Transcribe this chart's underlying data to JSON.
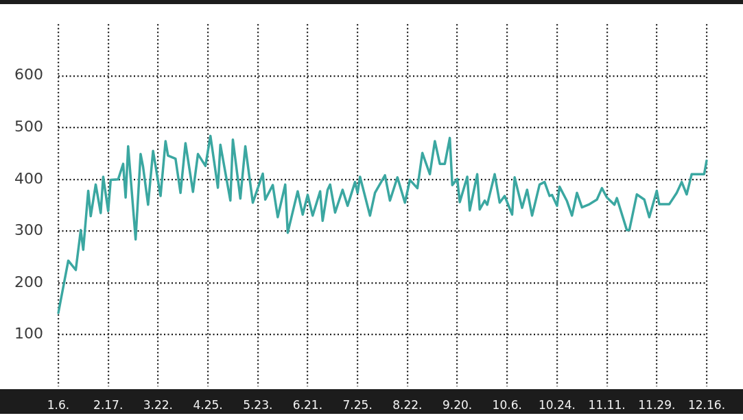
{
  "chart_data": {
    "type": "line",
    "categories": [
      "1.6.",
      null,
      null,
      null,
      null,
      null,
      null,
      null,
      null,
      null,
      null,
      null,
      null,
      null,
      null,
      null,
      null,
      null,
      null,
      null,
      "2.17.",
      null,
      null,
      null,
      null,
      null,
      null,
      null,
      null,
      null,
      null,
      null,
      null,
      null,
      null,
      null,
      null,
      null,
      null,
      null,
      "3.22.",
      null,
      null,
      null,
      null,
      null,
      null,
      null,
      null,
      null,
      null,
      null,
      null,
      null,
      null,
      null,
      null,
      null,
      null,
      null,
      "4.25.",
      null,
      null,
      null,
      null,
      null,
      null,
      null,
      null,
      null,
      null,
      null,
      null,
      null,
      null,
      null,
      null,
      null,
      null,
      null,
      "5.23.",
      null,
      null,
      null,
      null,
      null,
      null,
      null,
      null,
      null,
      null,
      null,
      null,
      null,
      null,
      null,
      null,
      null,
      null,
      null,
      "6.21.",
      null,
      null,
      null,
      null,
      null,
      null,
      null,
      null,
      null,
      null,
      null,
      null,
      null,
      null,
      null,
      null,
      null,
      null,
      null,
      "7.25.",
      null,
      null,
      null,
      null,
      null,
      null,
      null,
      null,
      null,
      null,
      null,
      null,
      null,
      null,
      null,
      null,
      null,
      null,
      null,
      "8.22.",
      null,
      null,
      null,
      null,
      null,
      null,
      null,
      null,
      null,
      null,
      null,
      null,
      null,
      null,
      null,
      null,
      null,
      null,
      null,
      "9.20.",
      null,
      null,
      null,
      null,
      null,
      null,
      null,
      null,
      null,
      null,
      null,
      null,
      null,
      null,
      null,
      null,
      null,
      null,
      null,
      "10.6.",
      null,
      null,
      null,
      null,
      null,
      null,
      null,
      null,
      null,
      null,
      null,
      null,
      null,
      null,
      null,
      null,
      null,
      null,
      null,
      "10.24.",
      null,
      null,
      null,
      null,
      null,
      null,
      null,
      null,
      null,
      null,
      null,
      null,
      null,
      null,
      null,
      null,
      null,
      null,
      null,
      "11.11.",
      null,
      null,
      null,
      null,
      null,
      null,
      null,
      null,
      null,
      null,
      null,
      null,
      null,
      null,
      null,
      null,
      null,
      null,
      null,
      "11.29.",
      null,
      null,
      null,
      null,
      null,
      null,
      null,
      null,
      null,
      null,
      null,
      null,
      null,
      null,
      null,
      null,
      null,
      null,
      null,
      "12.16."
    ],
    "series": [
      {
        "color": "#3ba7a1",
        "values": [
          142,
          null,
          null,
          null,
          243,
          null,
          null,
          225,
          null,
          302,
          264,
          null,
          378,
          329,
          null,
          390,
          null,
          335,
          405,
          null,
          339,
          399,
          null,
          null,
          400,
          null,
          430,
          365,
          464,
          null,
          null,
          284,
          null,
          449,
          424,
          null,
          351,
          null,
          455,
          null,
          null,
          368,
          null,
          474,
          446,
          null,
          null,
          440,
          null,
          374,
          null,
          470,
          null,
          null,
          376,
          null,
          449,
          null,
          null,
          426,
          null,
          484,
          null,
          null,
          384,
          467,
          null,
          null,
          null,
          359,
          477,
          null,
          null,
          363,
          null,
          464,
          null,
          null,
          355,
          null,
          null,
          null,
          411,
          361,
          null,
          null,
          389,
          null,
          327,
          null,
          null,
          390,
          297,
          null,
          null,
          null,
          377,
          null,
          332,
          null,
          370,
          null,
          330,
          null,
          null,
          377,
          320,
          null,
          380,
          390,
          null,
          336,
          null,
          null,
          380,
          null,
          349,
          null,
          null,
          395,
          374,
          405,
          null,
          null,
          null,
          330,
          null,
          374,
          null,
          null,
          null,
          408,
          null,
          359,
          null,
          null,
          404,
          null,
          null,
          355,
          null,
          399,
          null,
          null,
          383,
          null,
          451,
          null,
          null,
          410,
          null,
          474,
          null,
          430,
          null,
          430,
          null,
          480,
          389,
          null,
          401,
          356,
          null,
          null,
          405,
          340,
          null,
          null,
          410,
          342,
          null,
          359,
          351,
          null,
          null,
          410,
          null,
          355,
          null,
          368,
          null,
          null,
          332,
          404,
          null,
          null,
          345,
          null,
          380,
          null,
          330,
          null,
          null,
          390,
          null,
          395,
          null,
          368,
          370,
          null,
          349,
          386,
          null,
          null,
          358,
          null,
          330,
          null,
          374,
          null,
          346,
          null,
          null,
          352,
          null,
          null,
          361,
          null,
          383,
          null,
          365,
          null,
          null,
          351,
          364,
          null,
          null,
          null,
          302,
          302,
          null,
          null,
          371,
          null,
          null,
          361,
          null,
          327,
          null,
          null,
          378,
          352,
          null,
          null,
          null,
          352,
          null,
          null,
          374,
          null,
          395,
          null,
          371,
          null,
          410,
          null,
          null,
          null,
          null,
          410,
          436
        ]
      }
    ],
    "ylim": [
      0,
      700
    ],
    "yticks": [
      100,
      200,
      300,
      400,
      500,
      600
    ],
    "grid": true,
    "legend": false,
    "marker": "none",
    "line_style": "solid"
  }
}
